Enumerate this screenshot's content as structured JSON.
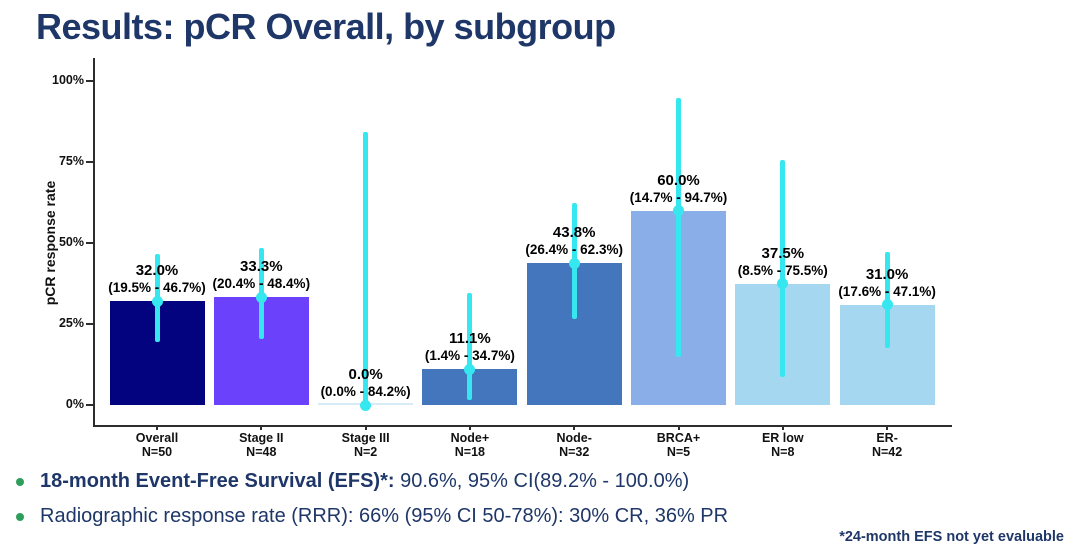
{
  "slide": {
    "title": "Results: pCR Overall, by subgroup",
    "footnote": "*24-month EFS not yet evaluable",
    "bullets": [
      {
        "bold": "18-month Event-Free Survival (EFS)*:",
        "rest": " 90.6%, 95% CI(89.2% - 100.0%)"
      },
      {
        "bold": "",
        "rest": "Radiographic response rate (RRR): 66% (95% CI 50-78%): 30% CR, 36% PR"
      }
    ],
    "colors": {
      "title_navy": "#1e3768",
      "bullet_green": "#2e9e5b",
      "axis": "#2d2d2d"
    }
  },
  "chart_data": {
    "type": "bar",
    "title": "Results: pCR Overall, by subgroup",
    "xlabel": "",
    "ylabel": "pCR response rate",
    "ylim": [
      0,
      100
    ],
    "grid": false,
    "legend": "none",
    "error_bar_color": "#36e7f0",
    "yticks": [
      {
        "value": 0,
        "label": "0%"
      },
      {
        "value": 25,
        "label": "25%"
      },
      {
        "value": 50,
        "label": "50%"
      },
      {
        "value": 75,
        "label": "75%"
      },
      {
        "value": 100,
        "label": "100%"
      }
    ],
    "categories": [
      {
        "label": "Overall",
        "n_label": "N=50",
        "value": 32.0,
        "value_label": "32.0%",
        "ci_low": 19.5,
        "ci_high": 46.7,
        "ci_label": "(19.5% - 46.7%)",
        "color": "#03037f"
      },
      {
        "label": "Stage II",
        "n_label": "N=48",
        "value": 33.3,
        "value_label": "33.3%",
        "ci_low": 20.4,
        "ci_high": 48.4,
        "ci_label": "(20.4% - 48.4%)",
        "color": "#6b41fb"
      },
      {
        "label": "Stage III",
        "n_label": "N=2",
        "value": 0.0,
        "value_label": "0.0%",
        "ci_low": 0.0,
        "ci_high": 84.2,
        "ci_label": "(0.0% - 84.2%)",
        "color": "#d8ecf7"
      },
      {
        "label": "Node+",
        "n_label": "N=18",
        "value": 11.1,
        "value_label": "11.1%",
        "ci_low": 1.4,
        "ci_high": 34.7,
        "ci_label": "(1.4% - 34.7%)",
        "color": "#4376bc"
      },
      {
        "label": "Node-",
        "n_label": "N=32",
        "value": 43.8,
        "value_label": "43.8%",
        "ci_low": 26.4,
        "ci_high": 62.3,
        "ci_label": "(26.4% - 62.3%)",
        "color": "#4376bc"
      },
      {
        "label": "BRCA+",
        "n_label": "N=5",
        "value": 60.0,
        "value_label": "60.0%",
        "ci_low": 14.7,
        "ci_high": 94.7,
        "ci_label": "(14.7% - 94.7%)",
        "color": "#8aaee8"
      },
      {
        "label": "ER low",
        "n_label": "N=8",
        "value": 37.5,
        "value_label": "37.5%",
        "ci_low": 8.5,
        "ci_high": 75.5,
        "ci_label": "(8.5% - 75.5%)",
        "color": "#a6d7f0"
      },
      {
        "label": "ER-",
        "n_label": "N=42",
        "value": 31.0,
        "value_label": "31.0%",
        "ci_low": 17.6,
        "ci_high": 47.1,
        "ci_label": "(17.6% - 47.1%)",
        "color": "#a6d7f0"
      }
    ]
  }
}
